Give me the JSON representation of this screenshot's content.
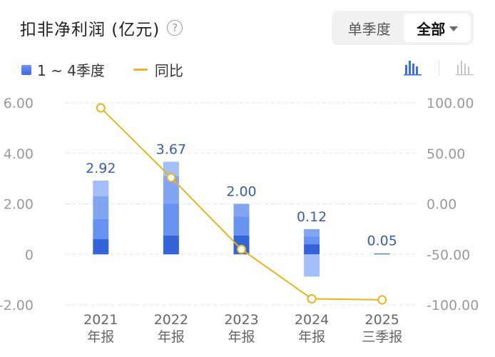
{
  "header": {
    "title": "扣非净利润 (亿元)",
    "help_icon": "?"
  },
  "period_toggle": {
    "single_label": "单季度",
    "all_label": "全部",
    "selected": "全部"
  },
  "legend": {
    "bar_label": "1 ~ 4季度",
    "line_label": "同比"
  },
  "view_icons": [
    "bar-chart-icon",
    "bar-chart-gray-icon"
  ],
  "colors": {
    "bar_dark": "#3563d8",
    "bar_mid": "#4d7fec",
    "bar_light": "#86a9f5",
    "line": "#e8b320",
    "label": "#3a5da8"
  },
  "chart_data": {
    "type": "bar",
    "categories": [
      {
        "year": "2021",
        "period": "年报"
      },
      {
        "year": "2022",
        "period": "年报"
      },
      {
        "year": "2023",
        "period": "年报"
      },
      {
        "year": "2024",
        "period": "年报"
      },
      {
        "year": "2025",
        "period": "三季报"
      }
    ],
    "totals": [
      "2.92",
      "3.67",
      "2.00",
      "0.12",
      "0.05"
    ],
    "quarters": [
      [
        0.6,
        0.8,
        0.9,
        0.62
      ],
      [
        0.75,
        1.25,
        1.1,
        0.57
      ],
      [
        0.75,
        0.75,
        0.5,
        0.0
      ],
      [
        0.4,
        0.3,
        0.3,
        -0.88
      ],
      [
        0.02,
        0.02,
        0.01
      ]
    ],
    "yoy": [
      95,
      26,
      -45,
      -94,
      -95
    ],
    "left_axis": {
      "ticks": [
        "6.00",
        "4.00",
        "2.00",
        "0",
        "-2.00"
      ],
      "min": -2,
      "max": 6
    },
    "right_axis": {
      "ticks": [
        "100.00",
        "50.00",
        "0.00",
        "-50.00",
        "-100.00"
      ],
      "min": -100,
      "max": 100
    },
    "grid": true
  }
}
